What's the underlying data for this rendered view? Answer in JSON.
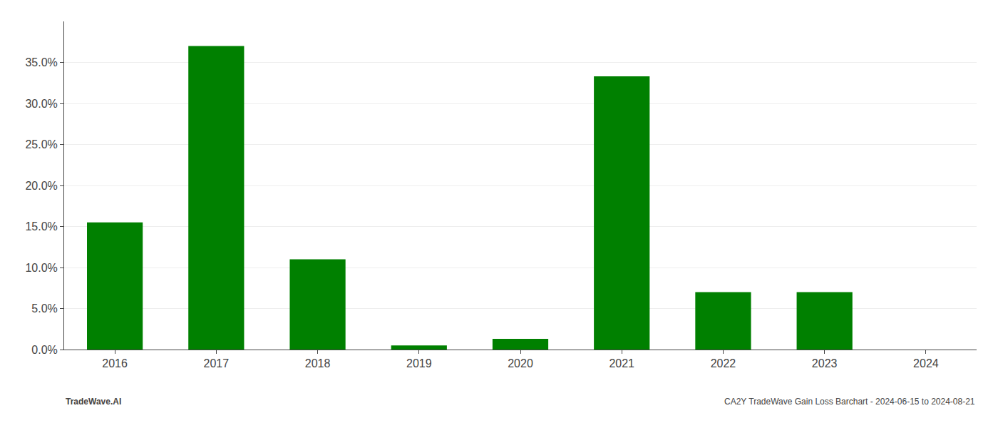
{
  "chart_data": {
    "type": "bar",
    "categories": [
      "2016",
      "2017",
      "2018",
      "2019",
      "2020",
      "2021",
      "2022",
      "2023",
      "2024"
    ],
    "values": [
      0.155,
      0.37,
      0.11,
      0.005,
      0.013,
      0.333,
      0.07,
      0.07,
      0.0
    ],
    "color": "#008000",
    "ylim": [
      0,
      0.4
    ],
    "yticks": [
      {
        "value": 0.0,
        "label": "0.0%"
      },
      {
        "value": 0.05,
        "label": "5.0%"
      },
      {
        "value": 0.1,
        "label": "10.0%"
      },
      {
        "value": 0.15,
        "label": "15.0%"
      },
      {
        "value": 0.2,
        "label": "20.0%"
      },
      {
        "value": 0.25,
        "label": "25.0%"
      },
      {
        "value": 0.3,
        "label": "30.0%"
      },
      {
        "value": 0.35,
        "label": "35.0%"
      }
    ],
    "grid": true,
    "annotations": [
      "TradeWave.AI",
      "CA2Y TradeWave Gain Loss Barchart - 2024-06-15 to 2024-08-21"
    ]
  }
}
